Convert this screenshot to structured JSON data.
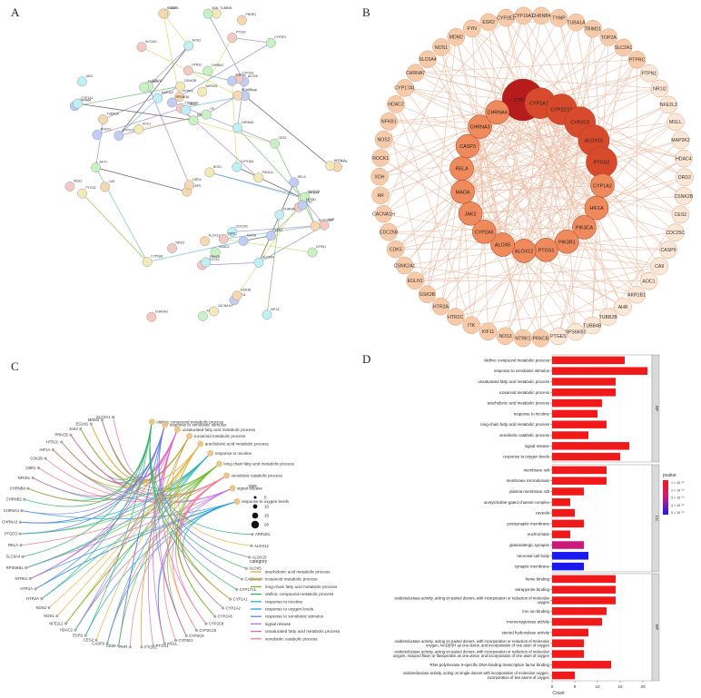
{
  "panels": {
    "a": "A",
    "b": "B",
    "c": "C",
    "d": "D"
  },
  "colors": {
    "string_node_green": "#c9f2c4",
    "string_node_blue": "#c0cdf5",
    "string_node_cyan": "#bff0f5",
    "string_node_pink": "#f4c9c4",
    "string_node_yellow": "#f3eab8",
    "string_node_orange": "#f6d8b0",
    "network_edge": "#eebda5",
    "hub_dark": "#b71c1c",
    "hub_mid": "#d84a2c",
    "hub_light": "#ef8a5d",
    "periph": "#f7cba9",
    "periph_light": "#fbe7d6",
    "bar_red": "#f01a1a",
    "bar_magenta": "#cc1a7a",
    "bar_blue": "#1a1af0"
  },
  "panel_a": {
    "nodes": [
      "CHRNA7",
      "CHRNB4",
      "CHRNA5",
      "CHRNA3",
      "CHRNA4",
      "PTPRC",
      "EGLN1",
      "TYMP",
      "CDC25C",
      "PTPN1",
      "CASP3",
      "CASP9",
      "MDM2",
      "ESR2",
      "CHRNA1",
      "PTGS1",
      "PTGS2",
      "HDAC2",
      "HDAC4",
      "MAOA",
      "NOS3",
      "NOS2",
      "NOS1",
      "ALOX12",
      "ALOX15",
      "ALOX5",
      "CYP1A1",
      "CYP1A2",
      "CYP2A6",
      "CYP2C19",
      "CYP2E1",
      "CYP2C9",
      "CYP19A1",
      "CYP17A1",
      "PIK3CA",
      "PIK3R1",
      "AKT1",
      "RELA",
      "HIF1A",
      "AHR",
      "TUBB2B",
      "TUBA1A",
      "ITK",
      "KIF11",
      "SLC6A4",
      "SLC2A1",
      "AOC1",
      "DRD2",
      "AR",
      "NFKB1",
      "MAP2K2",
      "CSNK2A1",
      "CSNK2B",
      "GSK3B",
      "NTRK1",
      "RPS6KB1",
      "JAK2",
      "HTR2C",
      "CACNA1H",
      "FYN",
      "XDH",
      "ROCK1",
      "MGLL",
      "NR1I2",
      "NFE2L2",
      "HTR2A",
      "TRIM21",
      "TOP2A",
      "PRKCB",
      "CDK5",
      "AKR1B1",
      "CA9",
      "CES2"
    ]
  },
  "panel_b": {
    "hubs": [
      {
        "name": "CYP2A6",
        "tier": "dark"
      },
      {
        "name": "CYP2A13",
        "tier": "mid"
      },
      {
        "name": "CYP2C19",
        "tier": "mid"
      },
      {
        "name": "CYP2C9",
        "tier": "mid"
      },
      {
        "name": "ALOX15",
        "tier": "mid"
      },
      {
        "name": "PTGS2",
        "tier": "mid"
      },
      {
        "name": "CYP1A2",
        "tier": "light"
      },
      {
        "name": "HIF1A",
        "tier": "light"
      },
      {
        "name": "PIK3CA",
        "tier": "light"
      },
      {
        "name": "PIK3R1",
        "tier": "light"
      },
      {
        "name": "PTGS1",
        "tier": "light"
      },
      {
        "name": "ALOX12",
        "tier": "light"
      },
      {
        "name": "ALOX5",
        "tier": "light"
      },
      {
        "name": "CYP2A6",
        "tier": "light"
      },
      {
        "name": "JAK2",
        "tier": "light"
      },
      {
        "name": "MAOA",
        "tier": "light"
      },
      {
        "name": "RELA",
        "tier": "light"
      },
      {
        "name": "CASP3",
        "tier": "light"
      },
      {
        "name": "CHRNA3",
        "tier": "light"
      },
      {
        "name": "CHRNA4",
        "tier": "light"
      }
    ],
    "ring": [
      "CHRNB4",
      "TYMP",
      "TUBA1A",
      "TRIM21",
      "TOP2A",
      "SLC2A1",
      "PTPRC",
      "PTPN1",
      "NR1I2",
      "NFE2L2",
      "MGLL",
      "MAP2K2",
      "HDAC4",
      "DRD2",
      "CSNK2B",
      "CES2",
      "CDC25C",
      "CASP9",
      "CA9",
      "AOC1",
      "AKR1B1",
      "AHR",
      "TUBB2B",
      "TUBB4B",
      "RPS6KB1",
      "PTGES",
      "PRKCB",
      "NTRK1",
      "NOS3",
      "KIF11",
      "ITK",
      "HTR2C",
      "HTR2A",
      "GSK3B",
      "EGLN1",
      "CSNK2A1",
      "CDK5",
      "CDC25B",
      "CACNA1H",
      "AR",
      "XDH",
      "ROCK1",
      "NOS2",
      "NFKB1",
      "HDAC2",
      "CYP17A1",
      "CHRNA7",
      "SLC6A4",
      "NOS1",
      "MDM2",
      "FYN",
      "ESR2",
      "CYP2E1",
      "CYP19A1"
    ]
  },
  "panel_c": {
    "size_title": "size",
    "size_values": [
      "5",
      "10",
      "15",
      "20"
    ],
    "category_title": "category",
    "categories": [
      {
        "label": "arachidonic acid metabolic process",
        "color": "#e8b13b"
      },
      {
        "label": "icosanoid metabolic process",
        "color": "#c0a030"
      },
      {
        "label": "long-chain fatty acid metabolic process",
        "color": "#6fbf2a"
      },
      {
        "label": "olefinic compound metabolic process",
        "color": "#2fb36a"
      },
      {
        "label": "response to nicotine",
        "color": "#23b8b0"
      },
      {
        "label": "response to oxygen levels",
        "color": "#2c9ee0"
      },
      {
        "label": "response to xenobiotic stimulus",
        "color": "#6c7fe8"
      },
      {
        "label": "signal release",
        "color": "#c06be0"
      },
      {
        "label": "unsaturated fatty acid metabolic process",
        "color": "#e064c0"
      },
      {
        "label": "xenobiotic catabolic process",
        "color": "#f07a8a"
      }
    ],
    "terms": [
      "olefinic compound metabolic process",
      "response to xenobiotic stimulus",
      "unsaturated fatty acid metabolic process",
      "icosanoid metabolic process",
      "arachidonic acid metabolic process",
      "response to nicotine",
      "long-chain fatty acid metabolic process",
      "xenobiotic catabolic process",
      "signal release",
      "response to oxygen levels"
    ],
    "genes": [
      "SLC2A1",
      "MDM2",
      "EGLN1",
      "JAK2",
      "PRKCB",
      "HTR2C",
      "HIF1A",
      "CSK2B",
      "CBR1",
      "NFKB1",
      "CHRNB4",
      "CHRNB2",
      "CHRNA4",
      "CHRNA3",
      "PTGES",
      "RELA",
      "SLC6A4",
      "RPS6KB1",
      "NTRK1",
      "HTR1A",
      "HTR2A",
      "NOS2",
      "NOS1",
      "NFE2L2",
      "HDAC2",
      "ESR2",
      "CES2",
      "CASP3",
      "CD38",
      "AHR",
      "PTGS2",
      "PTGS1",
      "MGLL",
      "CYP2E1",
      "CYP2C9",
      "CYP2C19",
      "CYP2C8",
      "CYP2A6",
      "CYP1A2",
      "CYP1A1",
      "CYP17A1",
      "CACNA1H",
      "ALOX5",
      "ALOX15",
      "ALOX12",
      "ARR1B1"
    ]
  },
  "chart_data": {
    "type": "bar",
    "orientation": "horizontal",
    "xlabel": "Count",
    "x_ticks": [
      0,
      5,
      10,
      15,
      20
    ],
    "xlim": [
      0,
      22
    ],
    "legend": {
      "title": "pvalue",
      "labels": [
        "1 × 10⁻¹⁰",
        "2 × 10⁻¹⁰",
        "3 × 10⁻¹⁰",
        "4 × 10⁻¹⁰",
        "5 × 10⁻¹⁰"
      ]
    },
    "facets": [
      {
        "name": "BP",
        "bars": [
          {
            "label": "olefinic compound metabolic process",
            "value": 16,
            "color": "#f01a1a"
          },
          {
            "label": "response to xenobiotic stimulus",
            "value": 21,
            "color": "#f01a1a"
          },
          {
            "label": "unsaturated fatty acid metabolic process",
            "value": 14,
            "color": "#f01a1a"
          },
          {
            "label": "icosanoid metabolic process",
            "value": 14,
            "color": "#f01a1a"
          },
          {
            "label": "arachidonic acid metabolic process",
            "value": 11,
            "color": "#f01a1a"
          },
          {
            "label": "response to nicotine",
            "value": 10,
            "color": "#f01a1a"
          },
          {
            "label": "long-chain fatty acid metabolic process",
            "value": 12,
            "color": "#f01a1a"
          },
          {
            "label": "xenobiotic catabolic process",
            "value": 8,
            "color": "#f01a1a"
          },
          {
            "label": "signal release",
            "value": 17,
            "color": "#f01a1a"
          },
          {
            "label": "response to oxygen levels",
            "value": 15,
            "color": "#f01a1a"
          }
        ]
      },
      {
        "name": "CC",
        "bars": [
          {
            "label": "membrane raft",
            "value": 12,
            "color": "#f01a1a"
          },
          {
            "label": "membrane microdomain",
            "value": 12,
            "color": "#f01a1a"
          },
          {
            "label": "plasma membrane raft",
            "value": 7,
            "color": "#f01a1a"
          },
          {
            "label": "acetylcholine-gated channel complex",
            "value": 4,
            "color": "#f01a1a"
          },
          {
            "label": "caveola",
            "value": 5,
            "color": "#f01a1a"
          },
          {
            "label": "postsynaptic membrane",
            "value": 7,
            "color": "#f01a1a"
          },
          {
            "label": "euchromatin",
            "value": 4,
            "color": "#f01a1a"
          },
          {
            "label": "glutamatergic synapse",
            "value": 7,
            "color": "#cc1a7a"
          },
          {
            "label": "neuronal cell body",
            "value": 8,
            "color": "#1a1af0"
          },
          {
            "label": "synaptic membrane",
            "value": 7,
            "color": "#1a1af0"
          }
        ]
      },
      {
        "name": "MF",
        "bars": [
          {
            "label": "heme binding",
            "value": 14,
            "color": "#f01a1a"
          },
          {
            "label": "tetrapyrrole binding",
            "value": 14,
            "color": "#f01a1a"
          },
          {
            "label": "oxidoreductase activity, acting on paired donors, with incorporation or reduction of molecular oxygen",
            "value": 14,
            "color": "#f01a1a"
          },
          {
            "label": "iron ion binding",
            "value": 12,
            "color": "#f01a1a"
          },
          {
            "label": "monooxygenase activity",
            "value": 11,
            "color": "#f01a1a"
          },
          {
            "label": "steroid hydroxylase activity",
            "value": 8,
            "color": "#f01a1a"
          },
          {
            "label": "oxidoreductase activity, acting on paired donors, with incorporation or reduction of molecular oxygen, NAD(P)H as one donor, and incorporation of one atom of oxygen",
            "value": 7,
            "color": "#f01a1a"
          },
          {
            "label": "oxidoreductase activity, acting on paired donors, with incorporation or reduction of molecular oxygen, reduced flavin or flavoprotein as one donor, and incorporation of one atom of oxygen",
            "value": 7,
            "color": "#f01a1a"
          },
          {
            "label": "RNA polymerase II-specific DNA-binding transcription factor binding",
            "value": 13,
            "color": "#f01a1a"
          },
          {
            "label": "oxidoreductase activity, acting on single donors with incorporation of molecular oxygen, incorporation of two atoms of oxygen",
            "value": 5,
            "color": "#f01a1a"
          }
        ]
      }
    ]
  }
}
